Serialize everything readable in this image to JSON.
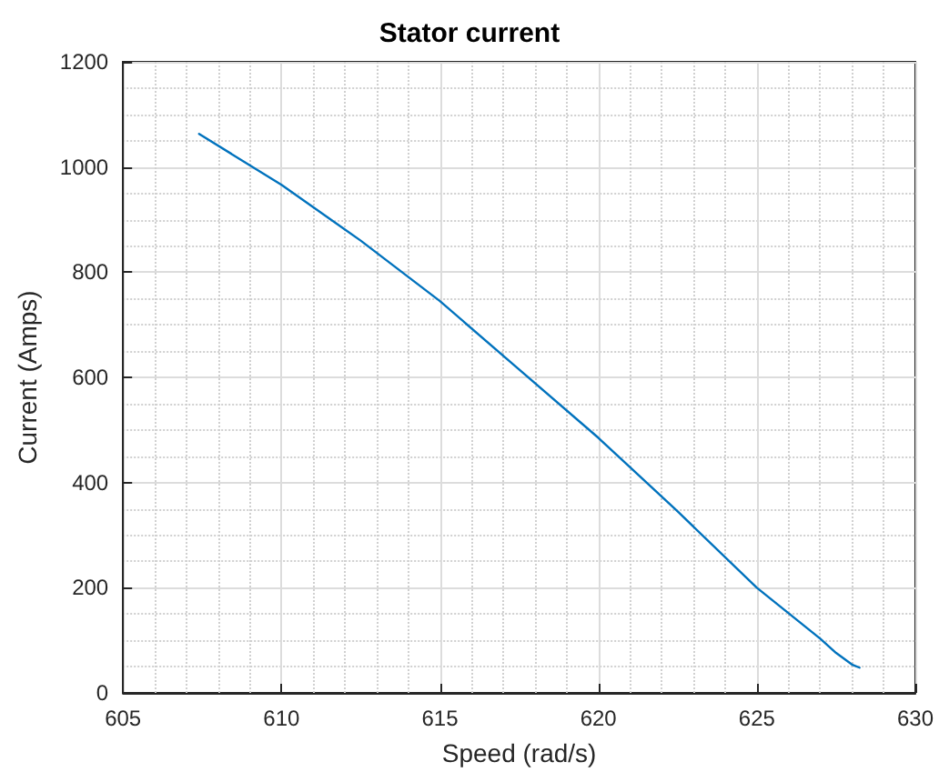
{
  "chart_data": {
    "type": "line",
    "title": "Stator current",
    "xlabel": "Speed (rad/s)",
    "ylabel": "Current (Amps)",
    "series": [
      {
        "color": "#0072bd",
        "x": [
          607.4,
          610,
          612.5,
          615,
          617.5,
          620,
          622.5,
          625,
          627,
          627.5,
          628,
          628.24
        ],
        "values": [
          1063,
          966,
          860,
          745,
          615,
          485,
          345,
          200,
          103,
          76,
          54,
          48
        ]
      }
    ],
    "xlim": [
      605,
      630
    ],
    "xticks": [
      605,
      610,
      615,
      620,
      625,
      630
    ],
    "ylim": [
      0,
      1200
    ],
    "yticks": [
      0,
      200,
      400,
      600,
      800,
      1000,
      1200
    ],
    "grid": true,
    "marker": "none",
    "line_style": "solid"
  }
}
